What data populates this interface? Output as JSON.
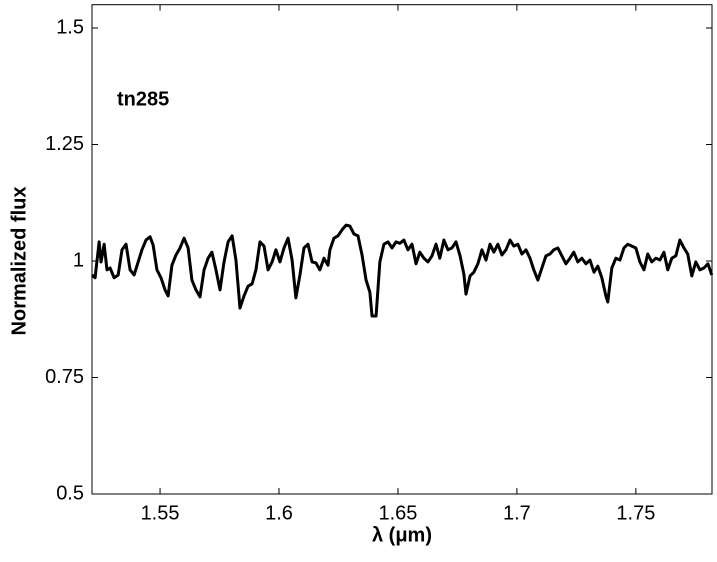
{
  "chart_data": {
    "type": "line",
    "annotation": "tn285",
    "xlabel": "λ (μm)",
    "ylabel": "Normalized flux",
    "xlim": [
      1.5214,
      1.782
    ],
    "ylim": [
      0.5,
      1.55
    ],
    "xticks": [
      1.55,
      1.6,
      1.65,
      1.7,
      1.75
    ],
    "yticks": [
      0.5,
      0.75,
      1,
      1.25,
      1.5
    ],
    "series": [
      {
        "color": "#000000",
        "x": [
          1.5214,
          1.5227,
          1.5244,
          1.5252,
          1.5265,
          1.5277,
          1.529,
          1.5307,
          1.5324,
          1.534,
          1.5357,
          1.5374,
          1.5391,
          1.5408,
          1.5424,
          1.5441,
          1.5458,
          1.5471,
          1.5487,
          1.5504,
          1.5521,
          1.5534,
          1.555,
          1.5567,
          1.5584,
          1.5601,
          1.5618,
          1.5634,
          1.5651,
          1.5668,
          1.5685,
          1.5702,
          1.5718,
          1.5735,
          1.5752,
          1.5769,
          1.5786,
          1.5803,
          1.5819,
          1.5836,
          1.5853,
          1.587,
          1.5887,
          1.5903,
          1.592,
          1.5937,
          1.5954,
          1.5971,
          1.5987,
          1.6004,
          1.6021,
          1.6038,
          1.6055,
          1.6071,
          1.6088,
          1.6105,
          1.6122,
          1.6139,
          1.6155,
          1.6172,
          1.6189,
          1.6206,
          1.6214,
          1.6231,
          1.6248,
          1.6265,
          1.6282,
          1.6298,
          1.6315,
          1.6332,
          1.6349,
          1.6366,
          1.6382,
          1.6391,
          1.6408,
          1.6424,
          1.6441,
          1.6458,
          1.6475,
          1.6492,
          1.6508,
          1.6525,
          1.6542,
          1.6559,
          1.6576,
          1.6592,
          1.6609,
          1.6626,
          1.6643,
          1.666,
          1.6676,
          1.6693,
          1.671,
          1.6727,
          1.6744,
          1.6761,
          1.6777,
          1.6786,
          1.6803,
          1.6819,
          1.6836,
          1.6853,
          1.687,
          1.6887,
          1.6903,
          1.692,
          1.6937,
          1.6954,
          1.6971,
          1.6987,
          1.7004,
          1.7021,
          1.7038,
          1.7055,
          1.7071,
          1.7088,
          1.7105,
          1.7122,
          1.7139,
          1.7155,
          1.7172,
          1.7189,
          1.7206,
          1.7223,
          1.7239,
          1.7256,
          1.7273,
          1.729,
          1.7307,
          1.7324,
          1.734,
          1.7357,
          1.7374,
          1.7382,
          1.7399,
          1.7416,
          1.7433,
          1.745,
          1.7466,
          1.7483,
          1.75,
          1.7517,
          1.7534,
          1.755,
          1.7567,
          1.7584,
          1.7601,
          1.7618,
          1.7634,
          1.7651,
          1.7668,
          1.7685,
          1.7702,
          1.7718,
          1.7735,
          1.7752,
          1.7769,
          1.7786,
          1.7803,
          1.7819
        ],
        "values": [
          0.97,
          0.964,
          1.041,
          0.998,
          1.036,
          0.981,
          0.985,
          0.964,
          0.97,
          1.024,
          1.036,
          0.981,
          0.97,
          0.998,
          1.024,
          1.045,
          1.052,
          1.034,
          0.981,
          0.964,
          0.938,
          0.925,
          0.991,
          1.013,
          1.028,
          1.049,
          1.028,
          0.959,
          0.938,
          0.923,
          0.981,
          1.006,
          1.019,
          0.981,
          0.938,
          0.998,
          1.041,
          1.054,
          1.002,
          0.899,
          0.925,
          0.946,
          0.951,
          0.981,
          1.041,
          1.032,
          0.981,
          0.998,
          1.024,
          0.998,
          1.028,
          1.049,
          1.002,
          0.921,
          0.97,
          1.028,
          1.036,
          0.998,
          0.996,
          0.981,
          1.006,
          0.991,
          1.024,
          1.049,
          1.054,
          1.067,
          1.077,
          1.075,
          1.058,
          1.054,
          1.013,
          0.959,
          0.933,
          0.882,
          0.882,
          0.998,
          1.036,
          1.041,
          1.028,
          1.041,
          1.038,
          1.045,
          1.024,
          1.036,
          0.994,
          1.019,
          1.006,
          0.998,
          1.011,
          1.036,
          1.006,
          1.045,
          1.024,
          1.028,
          1.041,
          1.011,
          0.972,
          0.929,
          0.968,
          0.976,
          0.994,
          1.024,
          1.002,
          1.036,
          1.019,
          1.036,
          1.013,
          1.024,
          1.045,
          1.032,
          1.036,
          1.015,
          1.024,
          1.006,
          0.981,
          0.959,
          0.985,
          1.011,
          1.015,
          1.024,
          1.028,
          1.011,
          0.994,
          1.006,
          1.019,
          0.998,
          1.006,
          0.994,
          1.002,
          0.976,
          0.989,
          0.964,
          0.925,
          0.912,
          0.985,
          1.006,
          1.002,
          1.028,
          1.036,
          1.032,
          1.028,
          0.998,
          0.981,
          1.015,
          0.998,
          1.006,
          1.002,
          1.019,
          0.981,
          1.006,
          1.011,
          1.045,
          1.028,
          1.015,
          0.968,
          0.998,
          0.981,
          0.985,
          0.994,
          0.97
        ]
      }
    ]
  }
}
